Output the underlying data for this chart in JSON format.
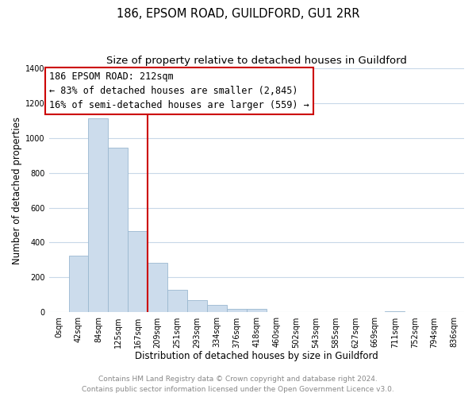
{
  "title": "186, EPSOM ROAD, GUILDFORD, GU1 2RR",
  "subtitle": "Size of property relative to detached houses in Guildford",
  "xlabel": "Distribution of detached houses by size in Guildford",
  "ylabel": "Number of detached properties",
  "bar_labels": [
    "0sqm",
    "42sqm",
    "84sqm",
    "125sqm",
    "167sqm",
    "209sqm",
    "251sqm",
    "293sqm",
    "334sqm",
    "376sqm",
    "418sqm",
    "460sqm",
    "502sqm",
    "543sqm",
    "585sqm",
    "627sqm",
    "669sqm",
    "711sqm",
    "752sqm",
    "794sqm",
    "836sqm"
  ],
  "bar_values": [
    0,
    325,
    1110,
    945,
    465,
    285,
    130,
    70,
    45,
    20,
    20,
    0,
    0,
    0,
    0,
    0,
    0,
    5,
    0,
    0,
    0
  ],
  "bar_color": "#ccdcec",
  "bar_edge_color": "#9ab8d0",
  "vline_x": 5,
  "vline_color": "#cc0000",
  "ylim": [
    0,
    1400
  ],
  "yticks": [
    0,
    200,
    400,
    600,
    800,
    1000,
    1200,
    1400
  ],
  "annotation_title": "186 EPSOM ROAD: 212sqm",
  "annotation_line1": "← 83% of detached houses are smaller (2,845)",
  "annotation_line2": "16% of semi-detached houses are larger (559) →",
  "annotation_box_color": "#ffffff",
  "annotation_box_edge": "#cc0000",
  "footer_line1": "Contains HM Land Registry data © Crown copyright and database right 2024.",
  "footer_line2": "Contains public sector information licensed under the Open Government Licence v3.0.",
  "background_color": "#ffffff",
  "grid_color": "#c8d8e8",
  "title_fontsize": 10.5,
  "subtitle_fontsize": 9.5,
  "axis_label_fontsize": 8.5,
  "tick_fontsize": 7,
  "footer_fontsize": 6.5,
  "annotation_fontsize": 8.5
}
